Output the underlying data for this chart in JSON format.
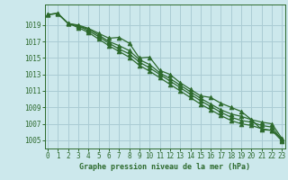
{
  "xlabel": "Graphe pression niveau de la mer (hPa)",
  "bg_color": "#cce8ec",
  "grid_color": "#aaccd4",
  "line_color": "#2d6a2d",
  "x_ticks": [
    0,
    1,
    2,
    3,
    4,
    5,
    6,
    7,
    8,
    9,
    10,
    11,
    12,
    13,
    14,
    15,
    16,
    17,
    18,
    19,
    20,
    21,
    22,
    23
  ],
  "ylim": [
    1004.0,
    1021.5
  ],
  "xlim": [
    -0.3,
    23.3
  ],
  "y_ticks": [
    1005,
    1007,
    1009,
    1011,
    1013,
    1015,
    1017,
    1019
  ],
  "series": [
    [
      1020.3,
      1020.4,
      1019.2,
      1019.0,
      1018.6,
      1018.0,
      1017.4,
      1017.5,
      1016.8,
      1015.0,
      1015.1,
      1013.5,
      1013.0,
      1012.0,
      1011.2,
      1010.4,
      1010.2,
      1009.5,
      1009.0,
      1008.5,
      1007.5,
      1006.3,
      1006.2,
      1005.2
    ],
    [
      1020.3,
      1020.4,
      1019.2,
      1018.9,
      1018.5,
      1017.8,
      1017.0,
      1016.5,
      1015.9,
      1014.8,
      1014.2,
      1013.2,
      1012.5,
      1011.7,
      1010.9,
      1010.1,
      1009.4,
      1008.7,
      1008.2,
      1007.9,
      1007.5,
      1007.2,
      1007.0,
      1005.2
    ],
    [
      1020.3,
      1020.4,
      1019.2,
      1018.9,
      1018.3,
      1017.6,
      1016.8,
      1016.1,
      1015.5,
      1014.5,
      1013.8,
      1013.0,
      1012.2,
      1011.4,
      1010.6,
      1009.8,
      1009.1,
      1008.4,
      1007.8,
      1007.4,
      1007.2,
      1006.8,
      1006.6,
      1005.0
    ],
    [
      1020.3,
      1020.4,
      1019.2,
      1018.7,
      1018.1,
      1017.3,
      1016.5,
      1015.8,
      1015.1,
      1014.1,
      1013.4,
      1012.6,
      1011.8,
      1011.0,
      1010.2,
      1009.4,
      1008.7,
      1008.0,
      1007.4,
      1007.0,
      1006.8,
      1006.4,
      1006.2,
      1004.9
    ]
  ],
  "linewidth": 0.9,
  "markersize": 3.5,
  "tick_fontsize": 5.5,
  "xlabel_fontsize": 6.0
}
